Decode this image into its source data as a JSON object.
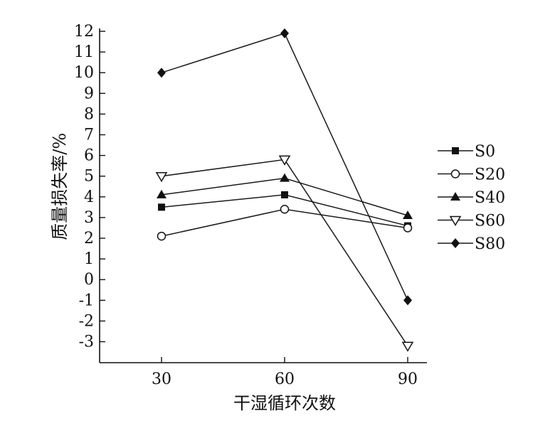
{
  "chart_data": {
    "type": "line",
    "title": "",
    "xlabel": "干湿循环次数",
    "ylabel": "质量损失率/%",
    "x": [
      30,
      60,
      90
    ],
    "x_tick_labels": [
      "30",
      "60",
      "90"
    ],
    "ylim": [
      -3.8,
      12.2
    ],
    "y_ticks": [
      -3,
      -2,
      -1,
      0,
      1,
      2,
      3,
      4,
      5,
      6,
      7,
      8,
      9,
      10,
      11,
      12
    ],
    "y_tick_labels": [
      "-3",
      "-2",
      "-1",
      "0",
      "1",
      "2",
      "3",
      "4",
      "5",
      "6",
      "7",
      "8",
      "9",
      "10",
      "11",
      "12"
    ],
    "grid": false,
    "legend_position": "right",
    "series": [
      {
        "name": "S0",
        "marker": "square-filled",
        "values": [
          3.5,
          4.1,
          2.6
        ]
      },
      {
        "name": "S20",
        "marker": "circle-open",
        "values": [
          2.1,
          3.4,
          2.5
        ]
      },
      {
        "name": "S40",
        "marker": "triangle-filled",
        "values": [
          4.1,
          4.9,
          3.1
        ]
      },
      {
        "name": "S60",
        "marker": "triangle-down-open",
        "values": [
          5.0,
          5.8,
          -3.2
        ]
      },
      {
        "name": "S80",
        "marker": "diamond-filled",
        "values": [
          10.0,
          11.9,
          -1.0
        ]
      }
    ],
    "colors": {
      "line": "#1a1a1a",
      "marker": "#111111",
      "axis": "#111111"
    }
  }
}
